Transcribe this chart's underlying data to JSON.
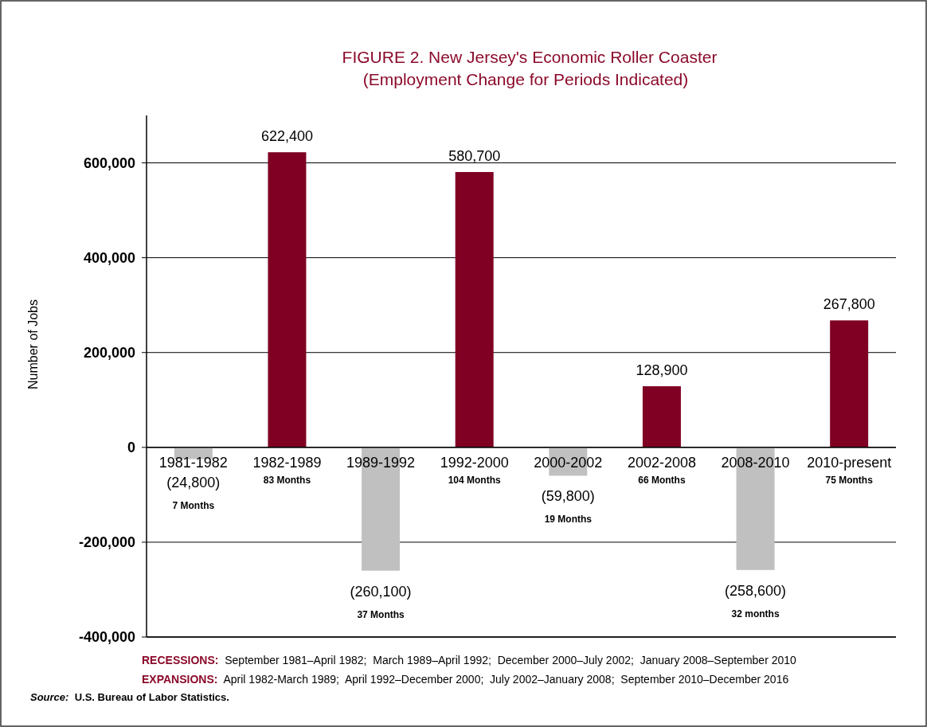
{
  "chart_data": {
    "type": "bar",
    "title": "FIGURE 2. New Jersey's Economic Roller Coaster",
    "subtitle": "(Employment Change for Periods Indicated)",
    "ylabel": "Number of Jobs",
    "categories": [
      "1981-1982",
      "1982-1989",
      "1989-1992",
      "1992-2000",
      "2000-2002",
      "2002-2008",
      "2008-2010",
      "2010-present"
    ],
    "values": [
      -24800,
      622400,
      -260100,
      580700,
      -59800,
      128900,
      -258600,
      267800
    ],
    "colors": [
      "#c0c0c0",
      "#7f0022",
      "#c0c0c0",
      "#7f0022",
      "#c0c0c0",
      "#7f0022",
      "#c0c0c0",
      "#7f0022"
    ],
    "value_labels": [
      "(24,800)",
      "622,400",
      "(260,100)",
      "580,700",
      "(59,800)",
      "128,900",
      "(258,600)",
      "267,800"
    ],
    "ylim": [
      -400000,
      700000
    ],
    "yticks": [
      {
        "value": -400000,
        "label": "-400,000"
      },
      {
        "value": -200000,
        "label": "-200,000"
      },
      0,
      {
        "value": 200000,
        "label": "200,000"
      },
      {
        "value": 400000,
        "label": "400,000"
      },
      {
        "value": 600000,
        "label": "600,000"
      }
    ],
    "grid": "y",
    "annotations": [
      "7 Months",
      "83 Months",
      "37 Months",
      "104 Months",
      "19 Months",
      "66 Months",
      "32 months",
      "75 Months",
      "RECESSIONS:  September 1981–April 1982;  March 1989–April 1992;  December 2000–July 2002;  January 2008–September 2010",
      "EXPANSIONS:  April 1982-March 1989;  April 1992–December 2000;  July 2002–January 2008;  September 2010–December 2016",
      "Source:  U.S. Bureau of Labor Statistics."
    ]
  }
}
